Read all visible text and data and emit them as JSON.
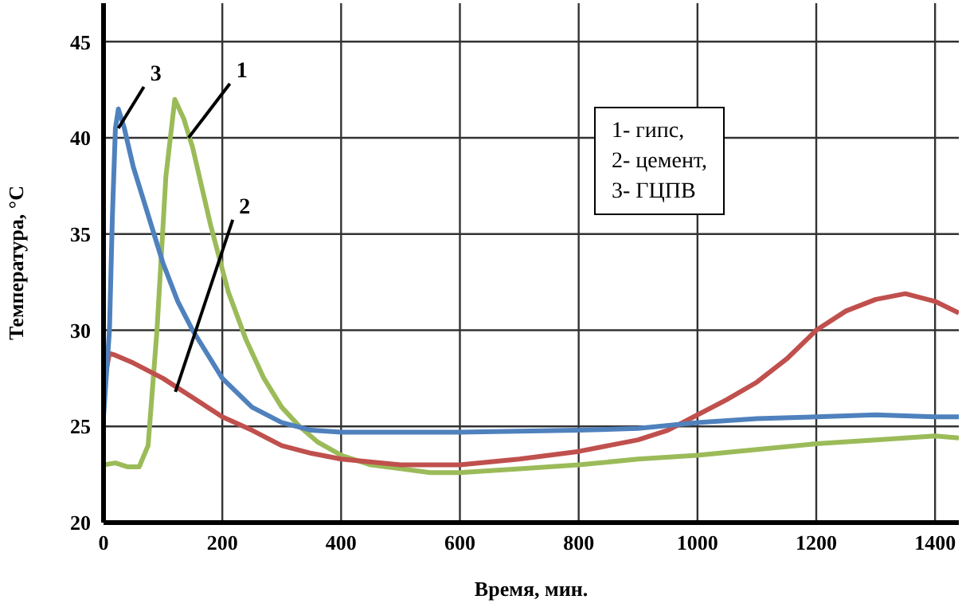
{
  "chart_data": {
    "type": "line",
    "xlabel": "Время, мин.",
    "ylabel": "Температура, °С",
    "xlim": [
      0,
      1440
    ],
    "ylim": [
      20,
      47
    ],
    "xticks": [
      0,
      200,
      400,
      600,
      800,
      1000,
      1200,
      1400
    ],
    "yticks": [
      20,
      25,
      30,
      35,
      40,
      45
    ],
    "grid": true,
    "marker": "none",
    "line_style": "solid",
    "series": [
      {
        "color": "#9bbb59",
        "x": [
          0,
          20,
          40,
          60,
          75,
          90,
          105,
          120,
          135,
          150,
          180,
          210,
          240,
          270,
          300,
          330,
          360,
          400,
          450,
          500,
          550,
          600,
          700,
          800,
          900,
          1000,
          1100,
          1200,
          1300,
          1400,
          1440
        ],
        "values": [
          23,
          23.1,
          22.9,
          22.9,
          24,
          30,
          38,
          42,
          41,
          39.5,
          35.5,
          32,
          29.5,
          27.5,
          26,
          25,
          24.2,
          23.5,
          23,
          22.8,
          22.6,
          22.6,
          22.8,
          23,
          23.3,
          23.5,
          23.8,
          24.1,
          24.3,
          24.5,
          24.4
        ]
      },
      {
        "color": "#c0504d",
        "x": [
          5,
          10,
          20,
          50,
          100,
          150,
          200,
          250,
          300,
          350,
          400,
          500,
          600,
          700,
          800,
          900,
          950,
          1000,
          1050,
          1100,
          1150,
          1200,
          1250,
          1300,
          1350,
          1400,
          1440
        ],
        "values": [
          28,
          28.8,
          28.7,
          28.3,
          27.5,
          26.5,
          25.5,
          24.8,
          24,
          23.6,
          23.3,
          23,
          23,
          23.3,
          23.7,
          24.3,
          24.8,
          25.6,
          26.4,
          27.3,
          28.5,
          30,
          31,
          31.6,
          31.9,
          31.5,
          30.9
        ]
      },
      {
        "color": "#4f81bd",
        "x": [
          0,
          10,
          15,
          20,
          25,
          35,
          50,
          75,
          100,
          125,
          150,
          200,
          250,
          300,
          350,
          400,
          600,
          800,
          900,
          1000,
          1100,
          1200,
          1300,
          1400,
          1440
        ],
        "values": [
          25.5,
          30,
          36,
          40.5,
          41.5,
          40.5,
          38.5,
          36,
          33.5,
          31.5,
          30,
          27.5,
          26,
          25.2,
          24.8,
          24.7,
          24.7,
          24.8,
          24.9,
          25.2,
          25.4,
          25.5,
          25.6,
          25.5,
          25.5
        ]
      }
    ],
    "annotations": [
      {
        "text": "1",
        "x": 143,
        "y": 40
      },
      {
        "text": "2",
        "x": 121,
        "y": 26.8
      },
      {
        "text": "3",
        "x": 25,
        "y": 40.5
      },
      "1- гипс,",
      "2- цемент,",
      "3- ГЦПВ"
    ]
  }
}
